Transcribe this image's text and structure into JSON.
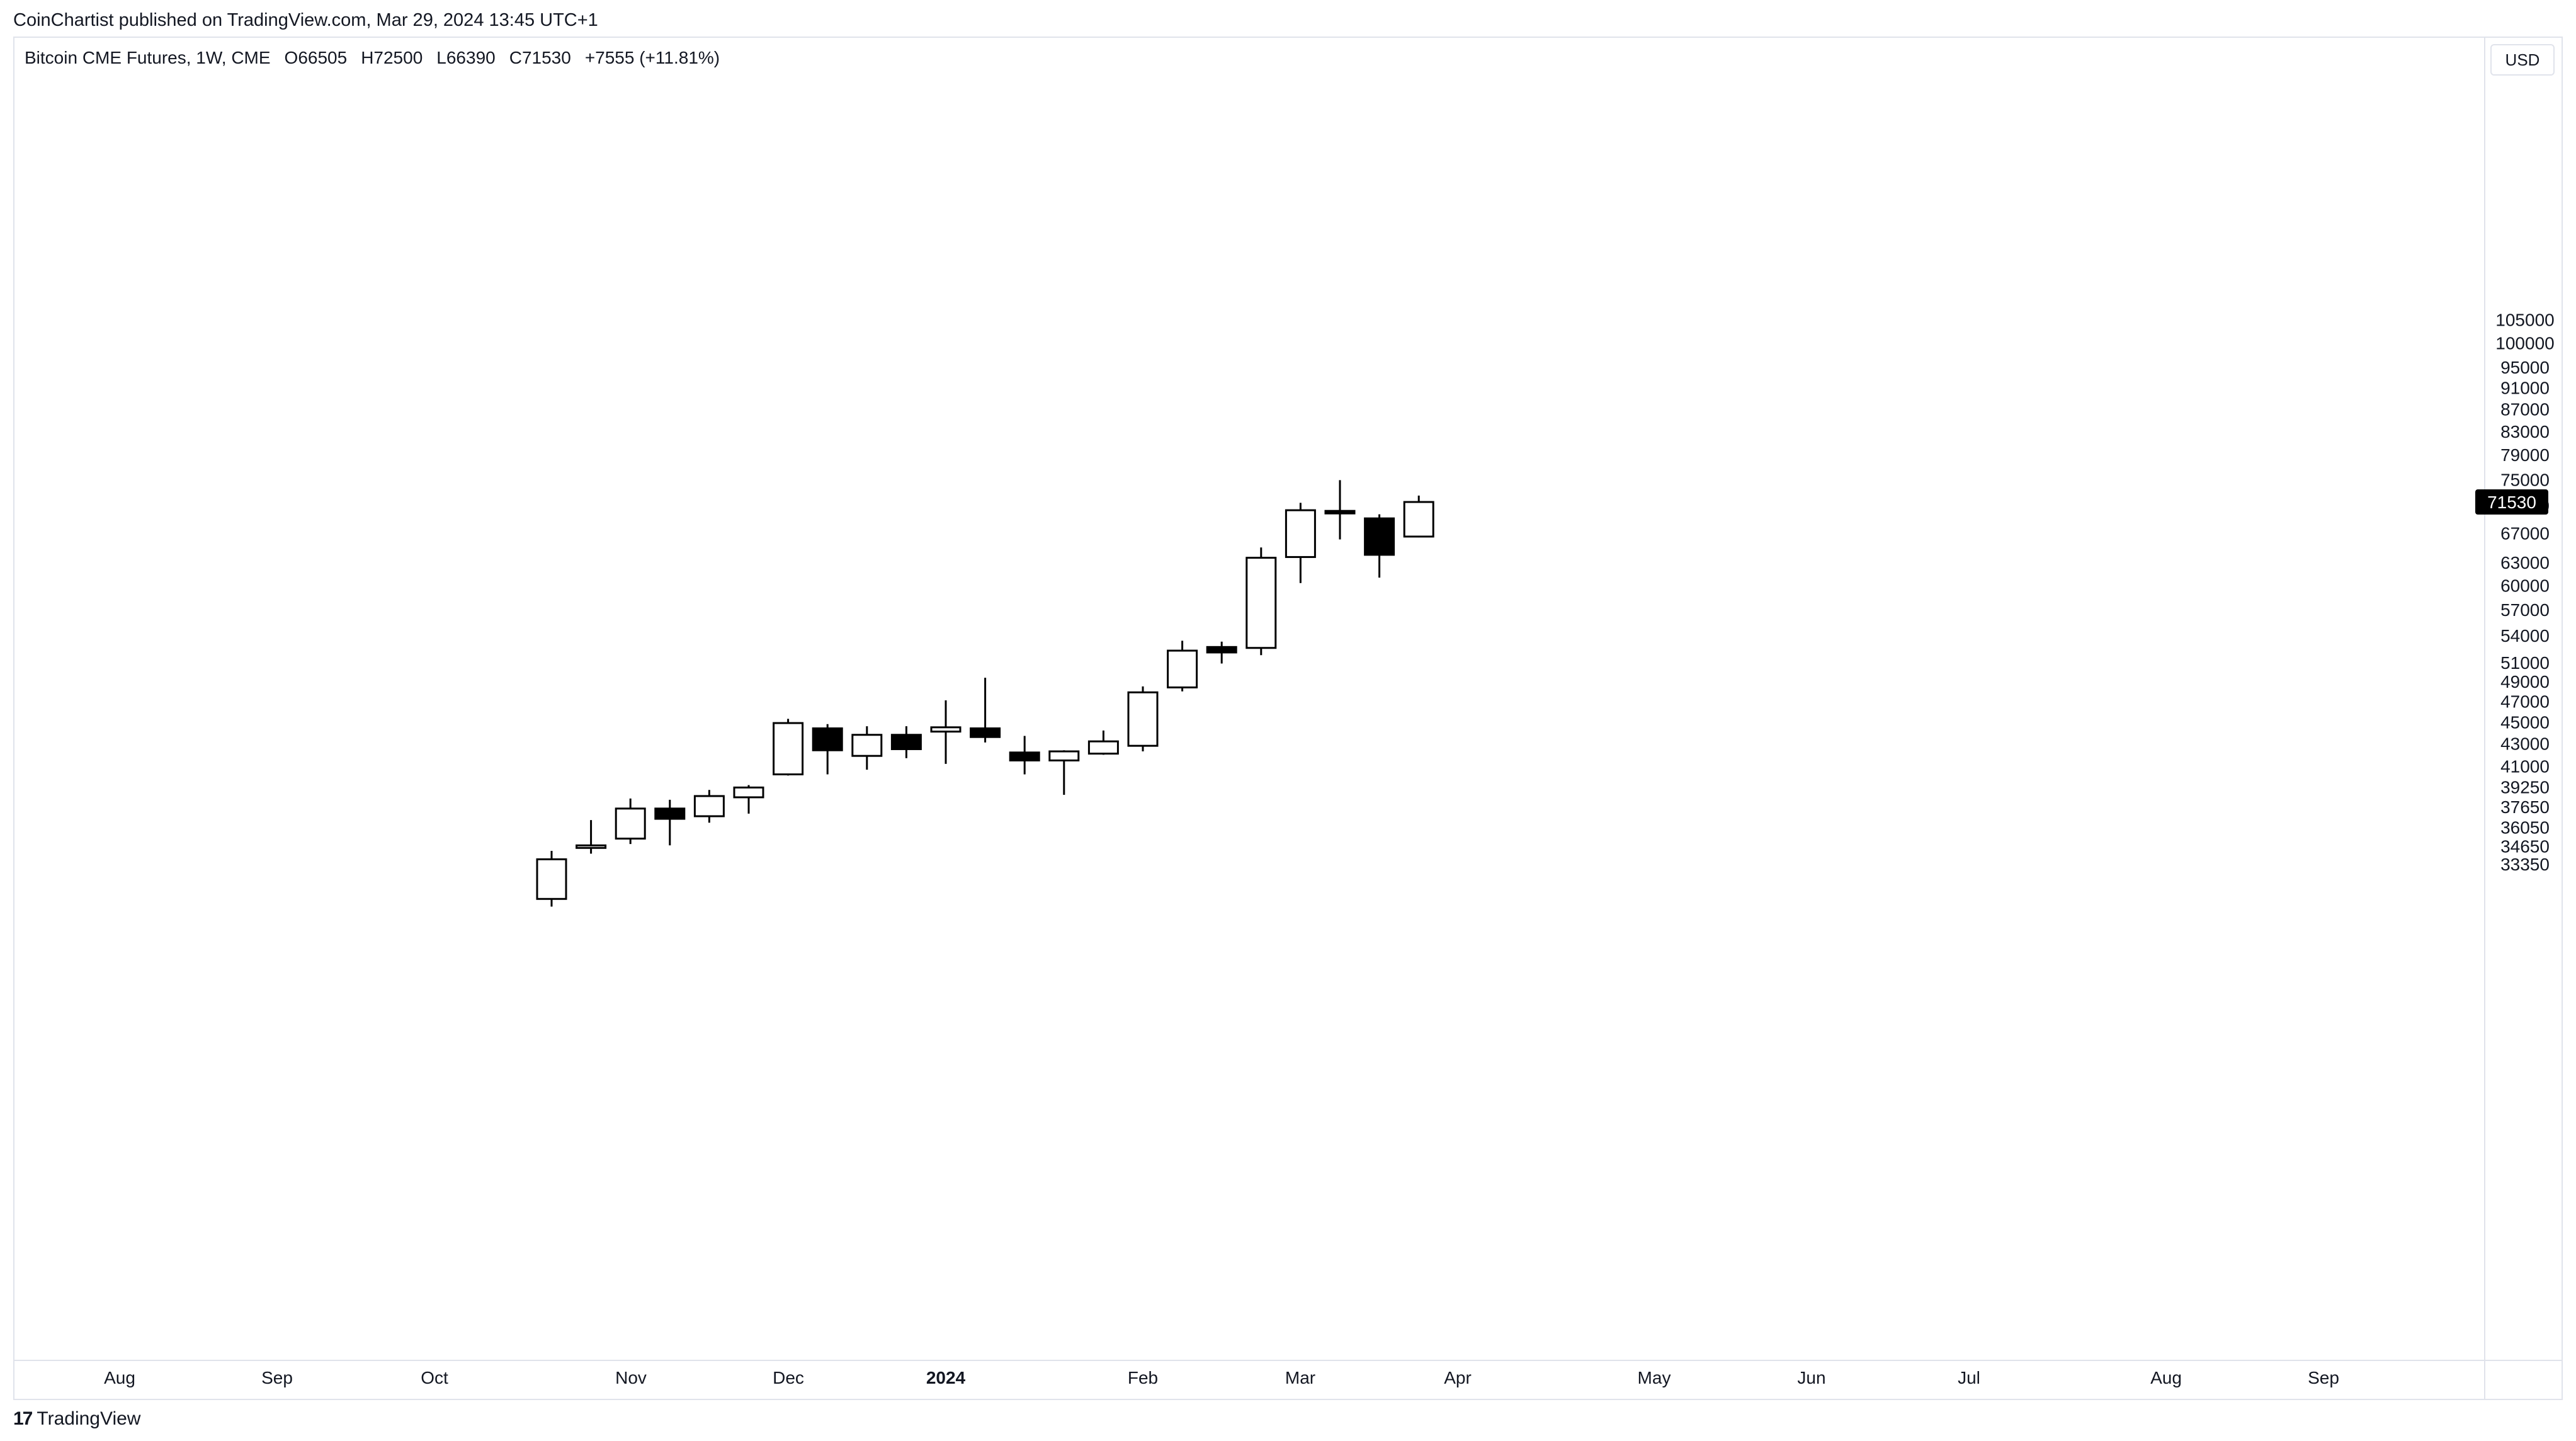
{
  "header": {
    "published": "CoinChartist published on TradingView.com, Mar 29, 2024 13:45 UTC+1"
  },
  "legend": {
    "symbol": "Bitcoin CME Futures, 1W, CME",
    "open": "O66505",
    "high": "H72500",
    "low": "L66390",
    "close": "C71530",
    "change": "+7555 (+11.81%)"
  },
  "price_scale": {
    "currency": "USD",
    "last_price_label": "71530",
    "tick_labels": [
      "105000",
      "100000",
      "95000",
      "91000",
      "87000",
      "83000",
      "79000",
      "75000",
      "71000",
      "67000",
      "63000",
      "60000",
      "57000",
      "54000",
      "51000",
      "49000",
      "47000",
      "45000",
      "43000",
      "41000",
      "39250",
      "37650",
      "36050",
      "34650",
      "33350"
    ]
  },
  "time_scale": {
    "labels": [
      "Aug",
      "Sep",
      "Oct",
      "Nov",
      "Dec",
      "2024",
      "Feb",
      "Mar",
      "Apr",
      "May",
      "Jun",
      "Jul",
      "Aug",
      "Sep"
    ]
  },
  "brand": {
    "logo_glyph": "17",
    "name": "TradingView"
  },
  "colors": {
    "up_body": "#ffffff",
    "down_body": "#000000",
    "wick": "#000000",
    "last_price_bg": "#000000",
    "last_price_text": "#ffffff"
  },
  "chart_data": {
    "type": "candlestick",
    "title": "Bitcoin CME Futures, 1W, CME",
    "ylabel": "USD",
    "y_scale": "log",
    "ylim": [
      33000,
      108000
    ],
    "x_labels": [
      "Aug",
      "Sep",
      "Oct",
      "Nov",
      "Dec",
      "2024",
      "Feb",
      "Mar",
      "Apr",
      "May",
      "Jun",
      "Jul",
      "Aug",
      "Sep"
    ],
    "candles": [
      {
        "week": "2023-10-16",
        "open": 31000,
        "high": 34300,
        "low": 30500,
        "close": 33700
      },
      {
        "week": "2023-10-23",
        "open": 34600,
        "high": 36600,
        "low": 34100,
        "close": 34700
      },
      {
        "week": "2023-10-30",
        "open": 35200,
        "high": 38300,
        "low": 34800,
        "close": 37500
      },
      {
        "week": "2023-11-06",
        "open": 37500,
        "high": 38200,
        "low": 34700,
        "close": 36700
      },
      {
        "week": "2023-11-13",
        "open": 36900,
        "high": 39000,
        "low": 36400,
        "close": 38500
      },
      {
        "week": "2023-11-20",
        "open": 38400,
        "high": 39400,
        "low": 37100,
        "close": 39200
      },
      {
        "week": "2023-11-27",
        "open": 40300,
        "high": 45300,
        "low": 40200,
        "close": 44900
      },
      {
        "week": "2023-12-04",
        "open": 44400,
        "high": 44800,
        "low": 40300,
        "close": 42400
      },
      {
        "week": "2023-12-11",
        "open": 41900,
        "high": 44600,
        "low": 40700,
        "close": 43800
      },
      {
        "week": "2023-12-18",
        "open": 43800,
        "high": 44600,
        "low": 41700,
        "close": 42500
      },
      {
        "week": "2023-12-25",
        "open": 44100,
        "high": 47100,
        "low": 41200,
        "close": 44500
      },
      {
        "week": "2024-01-01",
        "open": 44400,
        "high": 49400,
        "low": 43100,
        "close": 43600
      },
      {
        "week": "2024-01-08",
        "open": 42200,
        "high": 43700,
        "low": 40300,
        "close": 41500
      },
      {
        "week": "2024-01-15",
        "open": 41500,
        "high": 42400,
        "low": 38600,
        "close": 42300
      },
      {
        "week": "2024-01-22",
        "open": 42100,
        "high": 44200,
        "low": 42000,
        "close": 43200
      },
      {
        "week": "2024-01-29",
        "open": 42800,
        "high": 48500,
        "low": 42300,
        "close": 47900
      },
      {
        "week": "2024-02-05",
        "open": 48400,
        "high": 53400,
        "low": 48000,
        "close": 52300
      },
      {
        "week": "2024-02-12",
        "open": 52700,
        "high": 53300,
        "low": 50900,
        "close": 52100
      },
      {
        "week": "2024-02-19",
        "open": 52600,
        "high": 65000,
        "low": 51800,
        "close": 63600
      },
      {
        "week": "2024-02-26",
        "open": 63700,
        "high": 71400,
        "low": 60300,
        "close": 70300
      },
      {
        "week": "2024-03-04",
        "open": 70200,
        "high": 74900,
        "low": 66100,
        "close": 69900
      },
      {
        "week": "2024-03-11",
        "open": 69100,
        "high": 69700,
        "low": 61000,
        "close": 64000
      },
      {
        "week": "2024-03-18",
        "open": 66505,
        "high": 72500,
        "low": 66390,
        "close": 71530
      }
    ]
  }
}
